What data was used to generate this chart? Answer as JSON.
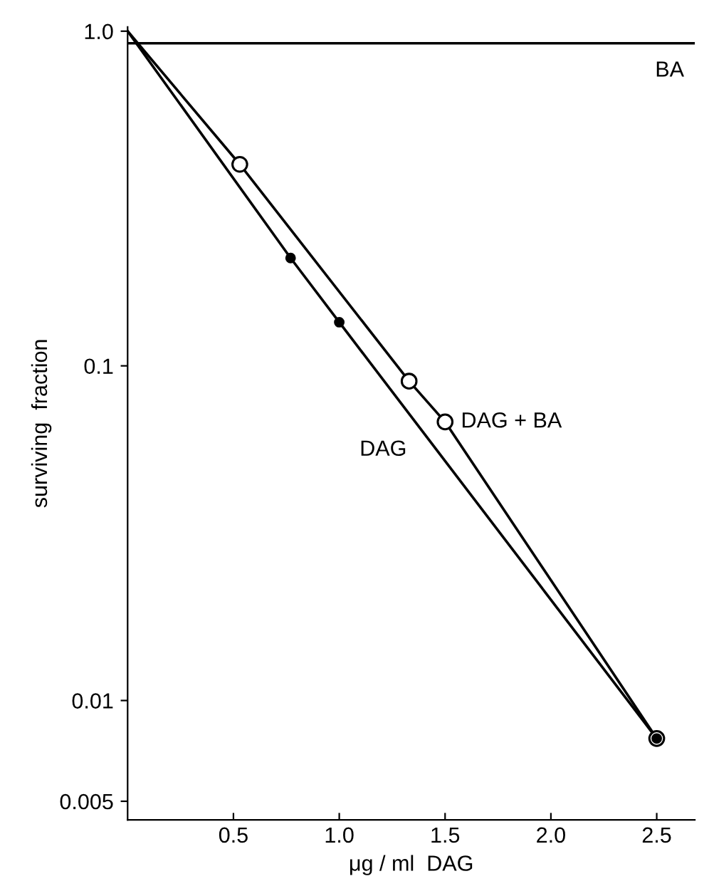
{
  "chart_data": {
    "type": "line",
    "xlabel": "μg / ml  DAG",
    "ylabel": "surviving  fraction",
    "log": "y",
    "grid": false,
    "legend": false,
    "marker": "none",
    "line_style": "solid",
    "xlim": [
      0,
      2.68
    ],
    "ylim": [
      0.0044,
      1.03
    ],
    "xticks": [
      0.5,
      {
        "value": 1.0,
        "label": "1.0"
      },
      1.5,
      {
        "value": 2.0,
        "label": "2.0"
      },
      2.5
    ],
    "yticks": [
      {
        "value": 1,
        "label": "1.0"
      },
      0.1,
      0.01,
      0.005
    ],
    "series": [
      {
        "name": "BA",
        "color": "#000000",
        "x": [
          0,
          2.68
        ],
        "values": [
          0.92,
          0.92
        ]
      },
      {
        "name": "DAG + BA",
        "color": "#000000",
        "x": [
          0,
          0.53,
          1.33,
          1.5,
          2.5
        ],
        "values": [
          1.0,
          0.4,
          0.09,
          0.068,
          0.0077
        ]
      },
      {
        "name": "DAG",
        "color": "#000000",
        "x": [
          0,
          0.77,
          1.0,
          2.5
        ],
        "values": [
          1.0,
          0.21,
          0.135,
          0.0077
        ]
      },
      {
        "type": "scatter",
        "marker": "circle",
        "color": "#ffffff",
        "x": [
          0.53,
          1.33,
          1.5,
          2.5
        ],
        "values": [
          0.4,
          0.09,
          0.068,
          0.0077
        ]
      },
      {
        "type": "scatter",
        "marker": "circle",
        "color": "#000000",
        "x": [
          0.77,
          1.0,
          2.5
        ],
        "values": [
          0.21,
          0.135,
          0.0077
        ]
      }
    ]
  }
}
